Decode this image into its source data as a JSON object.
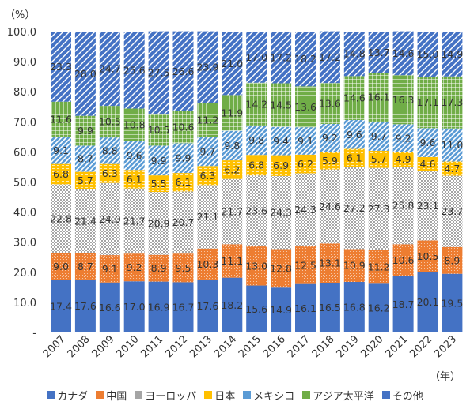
{
  "chart_data": {
    "type": "bar",
    "stacked": true,
    "ylabel": "（%）",
    "xlabel": "（年）",
    "ylim": [
      0,
      100
    ],
    "yticks": [
      "-",
      "10.0",
      "20.0",
      "30.0",
      "40.0",
      "50.0",
      "60.0",
      "70.0",
      "80.0",
      "90.0",
      "100.0"
    ],
    "categories": [
      "2007",
      "2008",
      "2009",
      "2010",
      "2011",
      "2012",
      "2013",
      "2014",
      "2015",
      "2016",
      "2017",
      "2018",
      "2019",
      "2020",
      "2021",
      "2022",
      "2023"
    ],
    "series": [
      {
        "name": "カナダ",
        "color": "#4472C4",
        "pattern": "solid",
        "values": [
          17.4,
          17.6,
          16.6,
          17.0,
          16.9,
          16.7,
          17.6,
          18.2,
          15.6,
          14.9,
          16.1,
          16.5,
          16.8,
          16.2,
          18.7,
          20.1,
          19.5
        ]
      },
      {
        "name": "中国",
        "color": "#ED7D31",
        "pattern": "dots",
        "values": [
          9.0,
          8.7,
          9.1,
          9.2,
          8.9,
          9.5,
          10.3,
          11.1,
          13.0,
          12.8,
          12.5,
          13.1,
          10.9,
          11.2,
          10.6,
          10.5,
          8.9
        ]
      },
      {
        "name": "ヨーロッパ",
        "color": "#A5A5A5",
        "pattern": "dots",
        "values": [
          22.8,
          21.4,
          24.0,
          21.7,
          20.9,
          20.7,
          21.1,
          21.7,
          23.6,
          24.3,
          24.3,
          24.6,
          27.2,
          27.3,
          25.8,
          23.1,
          23.7
        ]
      },
      {
        "name": "日本",
        "color": "#FFC000",
        "pattern": "dashes",
        "values": [
          6.8,
          5.7,
          6.3,
          6.1,
          5.5,
          6.1,
          6.3,
          6.2,
          6.8,
          6.9,
          6.2,
          5.9,
          6.1,
          5.7,
          4.9,
          4.6,
          4.7
        ]
      },
      {
        "name": "メキシコ",
        "color": "#5B9BD5",
        "pattern": "diagonal",
        "values": [
          9.1,
          8.7,
          8.8,
          9.6,
          9.9,
          9.9,
          9.7,
          9.8,
          9.8,
          9.4,
          9.1,
          9.2,
          9.6,
          9.7,
          9.2,
          9.6,
          11.0
        ]
      },
      {
        "name": "アジア太平洋",
        "color": "#70AD47",
        "pattern": "grid",
        "values": [
          11.6,
          9.9,
          10.5,
          10.8,
          10.5,
          10.6,
          11.2,
          11.9,
          14.2,
          14.5,
          13.6,
          13.6,
          14.6,
          16.1,
          16.3,
          17.1,
          17.3
        ]
      },
      {
        "name": "その他",
        "color": "#4472C4",
        "pattern": "wide-diagonal",
        "values": [
          23.3,
          28.0,
          24.7,
          25.6,
          27.5,
          26.6,
          23.9,
          21.0,
          17.0,
          17.2,
          18.2,
          17.2,
          14.8,
          13.7,
          14.6,
          15.0,
          14.9
        ]
      }
    ],
    "legend_position": "bottom",
    "grid": false
  }
}
